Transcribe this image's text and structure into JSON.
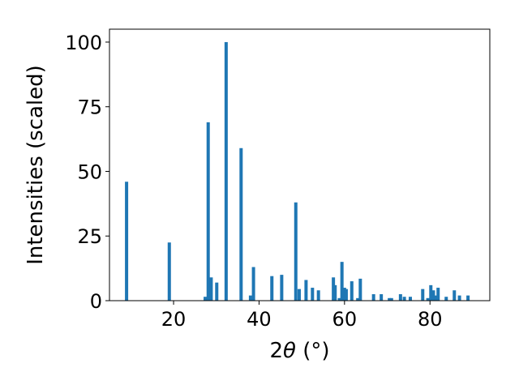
{
  "chart_data": {
    "type": "bar",
    "title": "",
    "xlabel_prefix": "2",
    "xlabel_theta": "θ",
    "xlabel_unit": " (°)",
    "ylabel": "Intensities (scaled)",
    "xlim": [
      5,
      94
    ],
    "ylim": [
      0,
      105
    ],
    "xticks": [
      20,
      40,
      60,
      80
    ],
    "yticks": [
      0,
      25,
      50,
      75,
      100
    ],
    "bar_color": "#1f77b4",
    "grid": false,
    "x": [
      9.0,
      19.0,
      27.4,
      28.1,
      28.8,
      30.1,
      32.3,
      35.8,
      38.0,
      38.7,
      43.0,
      45.3,
      48.6,
      49.4,
      51.0,
      52.5,
      53.9,
      57.4,
      57.8,
      58.8,
      59.4,
      60.0,
      60.4,
      61.7,
      63.1,
      63.7,
      66.8,
      68.6,
      70.5,
      71.0,
      73.1,
      74.0,
      75.4,
      78.3,
      79.5,
      80.2,
      80.8,
      81.4,
      81.9,
      83.8,
      85.7,
      86.9,
      88.9
    ],
    "values": [
      46,
      22.5,
      1.5,
      69,
      9,
      7,
      100,
      59,
      2,
      13,
      9.5,
      10,
      38,
      4.5,
      8,
      5,
      4,
      9,
      6,
      1,
      15,
      5,
      4.5,
      7.5,
      1,
      8.5,
      2.5,
      2.5,
      1,
      1,
      2.5,
      1.5,
      1.5,
      4.5,
      1,
      6,
      4,
      2,
      5,
      1.5,
      4,
      2,
      2
    ]
  }
}
